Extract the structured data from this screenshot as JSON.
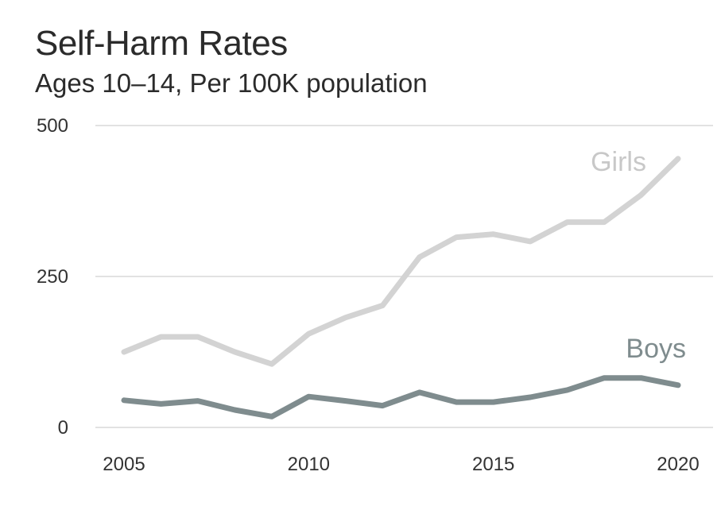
{
  "chart_data": {
    "type": "line",
    "title": "Self-Harm Rates",
    "subtitle": "Ages 10–14, Per 100K population",
    "xlabel": "",
    "ylabel": "",
    "xlim": [
      2005,
      2020
    ],
    "ylim": [
      0,
      500
    ],
    "x_ticks": [
      2005,
      2010,
      2015,
      2020
    ],
    "y_ticks": [
      0,
      250,
      500
    ],
    "x": [
      2005,
      2006,
      2007,
      2008,
      2009,
      2010,
      2011,
      2012,
      2013,
      2014,
      2015,
      2016,
      2017,
      2018,
      2019,
      2020
    ],
    "series": [
      {
        "name": "Girls",
        "color": "#d3d3d3",
        "values": [
          125,
          150,
          150,
          125,
          105,
          155,
          182,
          202,
          282,
          315,
          320,
          308,
          340,
          340,
          385,
          445
        ]
      },
      {
        "name": "Boys",
        "color": "#7f8c8e",
        "values": [
          45,
          39,
          44,
          29,
          18,
          51,
          44,
          36,
          58,
          42,
          42,
          50,
          62,
          82,
          82,
          70
        ]
      }
    ],
    "grid": true
  }
}
